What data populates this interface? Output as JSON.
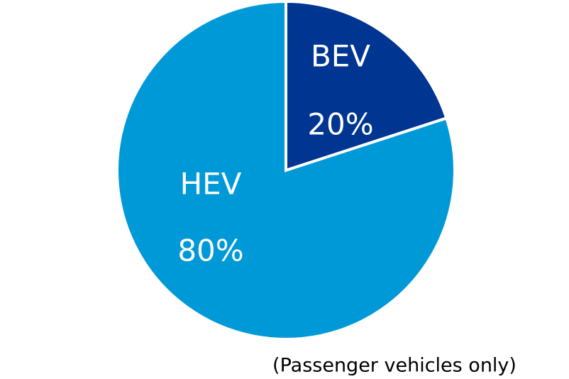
{
  "chart_data": {
    "type": "pie",
    "categories": [
      "BEV",
      "HEV"
    ],
    "values": [
      20,
      80
    ],
    "value_labels": [
      "20%",
      "80%"
    ],
    "colors": [
      "#003591",
      "#0099d8"
    ],
    "annotation": "(Passenger vehicles only)"
  }
}
